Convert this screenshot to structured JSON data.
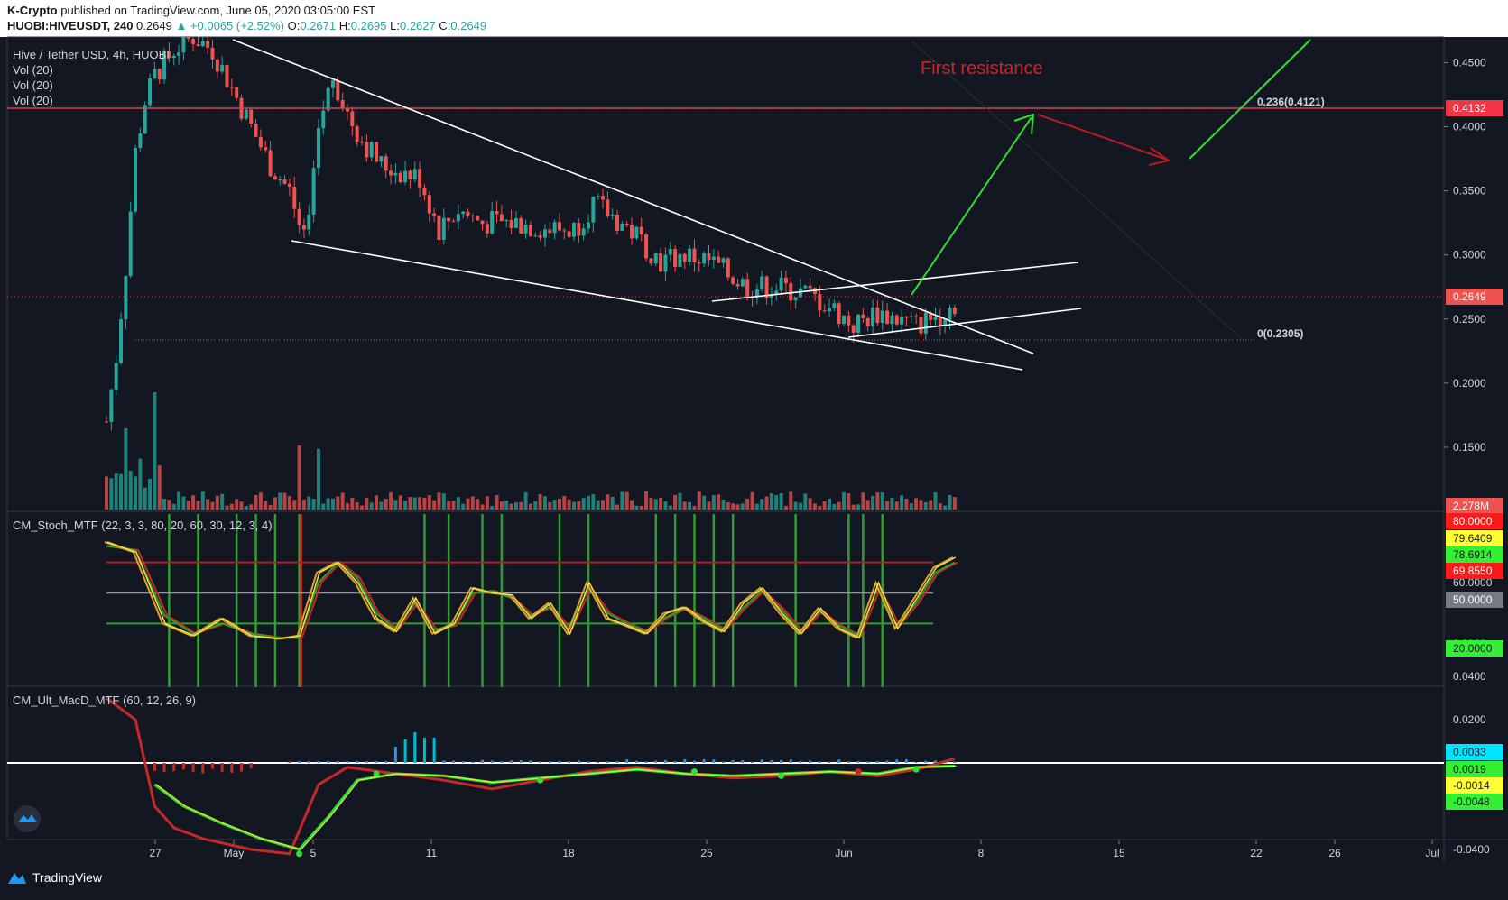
{
  "header": {
    "publisher": "K-Crypto",
    "published_text": "published on TradingView.com, June 05, 2020 03:05:00 EST",
    "symbol": "HUOBI:HIVEUSDT, 240",
    "last": "0.2649",
    "change": "▲ +0.0065 (+2.52%)",
    "o_label": "O:",
    "o": "0.2671",
    "h_label": "H:",
    "h": "0.2695",
    "l_label": "L:",
    "l": "0.2627",
    "c_label": "C:",
    "c": "0.2649"
  },
  "legend": {
    "title": "Hive / Tether USD, 4h, HUOBI",
    "vol1": "Vol (20)",
    "vol2": "Vol (20)",
    "vol3": "Vol (20)",
    "stoch": "CM_Stoch_MTF (22, 3, 3, 80, 20, 60, 30, 12, 3, 4)",
    "macd": "CM_Ult_MacD_MTF (60, 12, 26, 9)"
  },
  "annotations": {
    "first_resistance": "First resistance",
    "fib_236": "0.236(0.4121)",
    "fib_0": "0(0.2305)"
  },
  "footer": {
    "brand": "TradingView"
  },
  "colors": {
    "background": "#131722",
    "up": "#26a69a",
    "down": "#ef5350",
    "resistance": "#f23645",
    "arrow_up": "#2fe02f",
    "arrow_down": "#b71c1c",
    "trend": "#ffffff"
  },
  "chart_data": [
    {
      "type": "candlestick",
      "name_panel": "price",
      "y_ticks": [
        "0.4500",
        "0.4000",
        "0.3500",
        "0.3000",
        "0.2500",
        "0.2000",
        "0.1500"
      ],
      "ylim": [
        0.1,
        0.47
      ],
      "x_ticks": [
        "27",
        "May",
        "5",
        "11",
        "18",
        "25",
        "Jun",
        "8",
        "15",
        "22",
        "26",
        "Jul"
      ],
      "price_path": [
        [
          0,
          0.17
        ],
        [
          2,
          0.22
        ],
        [
          4,
          0.29
        ],
        [
          6,
          0.38
        ],
        [
          8,
          0.42
        ],
        [
          10,
          0.44
        ],
        [
          14,
          0.46
        ],
        [
          18,
          0.47
        ],
        [
          22,
          0.46
        ],
        [
          26,
          0.43
        ],
        [
          30,
          0.4
        ],
        [
          34,
          0.37
        ],
        [
          38,
          0.35
        ],
        [
          41,
          0.31
        ],
        [
          44,
          0.4
        ],
        [
          47,
          0.44
        ],
        [
          50,
          0.41
        ],
        [
          53,
          0.39
        ],
        [
          57,
          0.37
        ],
        [
          61,
          0.365
        ],
        [
          65,
          0.36
        ],
        [
          69,
          0.32
        ],
        [
          73,
          0.335
        ],
        [
          78,
          0.325
        ],
        [
          85,
          0.325
        ],
        [
          92,
          0.32
        ],
        [
          97,
          0.32
        ],
        [
          101,
          0.34
        ],
        [
          105,
          0.33
        ],
        [
          110,
          0.315
        ],
        [
          115,
          0.295
        ],
        [
          120,
          0.3
        ],
        [
          125,
          0.295
        ],
        [
          129,
          0.285
        ],
        [
          133,
          0.275
        ],
        [
          139,
          0.275
        ],
        [
          145,
          0.27
        ],
        [
          150,
          0.26
        ],
        [
          155,
          0.245
        ],
        [
          160,
          0.255
        ],
        [
          164,
          0.25
        ],
        [
          168,
          0.245
        ],
        [
          172,
          0.252
        ],
        [
          176,
          0.262
        ]
      ],
      "last_price": "0.2649",
      "resistance_level": "0.4132",
      "volume_label": "2.278M"
    },
    {
      "type": "line",
      "name_panel": "stoch",
      "y_ticks": [
        "60.0000",
        "40.0000",
        "0.0000"
      ],
      "ylim": [
        0,
        100
      ],
      "levels": [
        80,
        50,
        20
      ],
      "tag_values": [
        "80.0000",
        "79.6409",
        "78.6914",
        "69.8550",
        "50.0000",
        "20.0000"
      ],
      "k_series": [
        [
          0,
          100
        ],
        [
          6,
          90
        ],
        [
          12,
          20
        ],
        [
          18,
          8
        ],
        [
          24,
          25
        ],
        [
          30,
          8
        ],
        [
          36,
          5
        ],
        [
          40,
          8
        ],
        [
          44,
          70
        ],
        [
          48,
          80
        ],
        [
          52,
          60
        ],
        [
          56,
          25
        ],
        [
          60,
          12
        ],
        [
          64,
          45
        ],
        [
          68,
          10
        ],
        [
          72,
          20
        ],
        [
          76,
          55
        ],
        [
          80,
          50
        ],
        [
          84,
          48
        ],
        [
          88,
          25
        ],
        [
          92,
          40
        ],
        [
          96,
          10
        ],
        [
          100,
          60
        ],
        [
          104,
          25
        ],
        [
          108,
          18
        ],
        [
          112,
          10
        ],
        [
          116,
          30
        ],
        [
          120,
          36
        ],
        [
          124,
          22
        ],
        [
          128,
          12
        ],
        [
          132,
          40
        ],
        [
          136,
          55
        ],
        [
          140,
          30
        ],
        [
          144,
          10
        ],
        [
          148,
          35
        ],
        [
          152,
          15
        ],
        [
          156,
          6
        ],
        [
          160,
          60
        ],
        [
          164,
          15
        ],
        [
          168,
          45
        ],
        [
          172,
          75
        ],
        [
          176,
          85
        ]
      ],
      "d_series": [
        [
          0,
          96
        ],
        [
          6,
          92
        ],
        [
          12,
          28
        ],
        [
          18,
          10
        ],
        [
          24,
          20
        ],
        [
          30,
          10
        ],
        [
          36,
          6
        ],
        [
          40,
          6
        ],
        [
          44,
          60
        ],
        [
          48,
          80
        ],
        [
          52,
          65
        ],
        [
          56,
          30
        ],
        [
          60,
          14
        ],
        [
          64,
          40
        ],
        [
          68,
          14
        ],
        [
          72,
          18
        ],
        [
          76,
          50
        ],
        [
          80,
          52
        ],
        [
          84,
          45
        ],
        [
          88,
          28
        ],
        [
          92,
          36
        ],
        [
          96,
          14
        ],
        [
          100,
          55
        ],
        [
          104,
          30
        ],
        [
          108,
          20
        ],
        [
          112,
          12
        ],
        [
          116,
          26
        ],
        [
          120,
          35
        ],
        [
          124,
          25
        ],
        [
          128,
          14
        ],
        [
          132,
          35
        ],
        [
          136,
          52
        ],
        [
          140,
          34
        ],
        [
          144,
          12
        ],
        [
          148,
          32
        ],
        [
          152,
          18
        ],
        [
          156,
          8
        ],
        [
          160,
          55
        ],
        [
          164,
          18
        ],
        [
          168,
          40
        ],
        [
          172,
          70
        ],
        [
          176,
          80
        ]
      ],
      "green_bar_x": [
        13,
        19,
        27,
        31,
        35,
        40,
        66,
        71,
        78,
        82,
        94,
        100,
        114,
        118,
        122,
        126,
        130,
        143,
        154,
        157,
        161
      ]
    },
    {
      "type": "line",
      "name_panel": "macd",
      "y_ticks": [
        "0.0400",
        "0.0200",
        "-0.0400"
      ],
      "ylim": [
        -0.05,
        0.05
      ],
      "tag_values": [
        "0.0033",
        "0.0019",
        "-0.0014",
        "-0.0048"
      ],
      "macd_series": [
        [
          0,
          0.03
        ],
        [
          6,
          0.02
        ],
        [
          10,
          -0.02
        ],
        [
          14,
          -0.03
        ],
        [
          20,
          -0.035
        ],
        [
          30,
          -0.04
        ],
        [
          38,
          -0.042
        ],
        [
          44,
          -0.01
        ],
        [
          50,
          -0.002
        ],
        [
          60,
          -0.005
        ],
        [
          70,
          -0.008
        ],
        [
          80,
          -0.012
        ],
        [
          90,
          -0.008
        ],
        [
          100,
          -0.004
        ],
        [
          110,
          -0.002
        ],
        [
          120,
          -0.005
        ],
        [
          130,
          -0.007
        ],
        [
          140,
          -0.006
        ],
        [
          150,
          -0.004
        ],
        [
          160,
          -0.006
        ],
        [
          168,
          -0.003
        ],
        [
          176,
          0.0019
        ]
      ],
      "signal_series": [
        [
          10,
          -0.01
        ],
        [
          16,
          -0.02
        ],
        [
          24,
          -0.028
        ],
        [
          32,
          -0.035
        ],
        [
          40,
          -0.04
        ],
        [
          46,
          -0.025
        ],
        [
          52,
          -0.008
        ],
        [
          60,
          -0.005
        ],
        [
          70,
          -0.006
        ],
        [
          80,
          -0.009
        ],
        [
          90,
          -0.007
        ],
        [
          100,
          -0.005
        ],
        [
          110,
          -0.003
        ],
        [
          120,
          -0.005
        ],
        [
          130,
          -0.006
        ],
        [
          140,
          -0.005
        ],
        [
          150,
          -0.004
        ],
        [
          160,
          -0.005
        ],
        [
          168,
          -0.002
        ],
        [
          176,
          -0.0014
        ]
      ]
    }
  ]
}
